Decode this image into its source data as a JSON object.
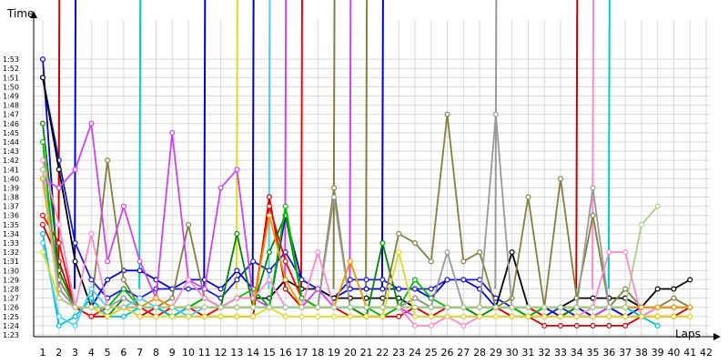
{
  "chart_data": {
    "type": "line",
    "title": "",
    "xlabel": "Laps",
    "ylabel": "Time",
    "x": [
      1,
      2,
      3,
      4,
      5,
      6,
      7,
      8,
      9,
      10,
      11,
      12,
      13,
      14,
      15,
      16,
      17,
      18,
      19,
      20,
      21,
      22,
      23,
      24,
      25,
      26,
      27,
      28,
      29,
      30,
      31,
      32,
      33,
      34,
      35,
      36,
      37,
      38,
      39,
      40,
      41,
      42
    ],
    "y_ticks": [
      "1:23",
      "1:24",
      "1:25",
      "1:26",
      "1:27",
      "1:28",
      "1:29",
      "1:30",
      "1:31",
      "1:32",
      "1:33",
      "1:34",
      "1:35",
      "1:36",
      "1:37",
      "1:38",
      "1:39",
      "1:40",
      "1:41",
      "1:42",
      "1:43",
      "1:44",
      "1:45",
      "1:46",
      "1:47",
      "1:48",
      "1:49",
      "1:50",
      "1:51",
      "1:52",
      "1:53"
    ],
    "ylim": [
      83,
      114
    ],
    "xlim": [
      1,
      42
    ],
    "grid": true,
    "legend": "none",
    "series": [
      {
        "color": "#0000cc",
        "values": [
          113,
          88,
          86,
          86,
          89,
          90,
          90,
          89,
          88,
          89,
          89,
          88,
          90,
          88,
          86,
          96,
          89,
          88,
          87,
          88,
          88,
          88,
          88,
          88,
          87,
          89,
          89,
          88,
          86,
          86,
          85,
          86,
          85,
          86,
          85,
          86,
          85,
          86,
          86,
          86,
          86,
          null
        ]
      },
      {
        "color": "#1a1ad4",
        "values": [
          111,
          102,
          93,
          89,
          87,
          88,
          87,
          88,
          88,
          88,
          88,
          87,
          89,
          91,
          90,
          92,
          89,
          88,
          87,
          89,
          89,
          89,
          88,
          88,
          88,
          89,
          89,
          89,
          87,
          86,
          86,
          85,
          86,
          85,
          85,
          86,
          85,
          85,
          86,
          86,
          86,
          null
        ]
      },
      {
        "color": "#000000",
        "values": [
          111,
          101,
          91,
          86,
          86,
          86,
          86,
          86,
          86,
          86,
          87,
          86,
          87,
          87,
          87,
          89,
          88,
          88,
          87,
          87,
          87,
          87,
          87,
          86,
          86,
          86,
          86,
          86,
          86,
          92,
          86,
          86,
          86,
          87,
          87,
          87,
          87,
          86,
          88,
          88,
          89,
          null
        ]
      },
      {
        "color": "#cc0000",
        "values": [
          95,
          91,
          86,
          85,
          85,
          86,
          85,
          86,
          85,
          85,
          85,
          85,
          85,
          85,
          98,
          88,
          86,
          86,
          86,
          85,
          85,
          85,
          85,
          86,
          85,
          86,
          86,
          86,
          86,
          85,
          85,
          84,
          84,
          84,
          84,
          84,
          84,
          85,
          85,
          85,
          86,
          null
        ]
      },
      {
        "color": "#ff0000",
        "values": [
          96,
          93,
          86,
          85,
          86,
          86,
          86,
          85,
          86,
          86,
          85,
          86,
          86,
          86,
          97,
          91,
          87,
          86,
          86,
          86,
          85,
          85,
          86,
          87,
          86,
          86,
          86,
          86,
          86,
          86,
          86,
          85,
          85,
          85,
          85,
          85,
          85,
          85,
          85,
          85,
          85,
          null
        ]
      },
      {
        "color": "#008800",
        "values": [
          106,
          90,
          86,
          86,
          85,
          87,
          86,
          86,
          85,
          86,
          86,
          86,
          94,
          86,
          92,
          96,
          87,
          86,
          86,
          86,
          85,
          93,
          86,
          87,
          86,
          86,
          86,
          85,
          86,
          86,
          85,
          85,
          85,
          86,
          86,
          86,
          86,
          86,
          86,
          86,
          86,
          null
        ]
      },
      {
        "color": "#00bb00",
        "values": [
          104,
          87,
          86,
          86,
          86,
          88,
          86,
          87,
          86,
          86,
          87,
          86,
          87,
          88,
          86,
          97,
          87,
          86,
          86,
          91,
          86,
          85,
          86,
          89,
          87,
          86,
          86,
          86,
          86,
          86,
          85,
          86,
          86,
          86,
          86,
          86,
          86,
          86,
          86,
          86,
          86,
          null
        ]
      },
      {
        "color": "#808040",
        "values": [
          101,
          89,
          86,
          86,
          102,
          89,
          86,
          86,
          87,
          95,
          87,
          86,
          86,
          86,
          86,
          86,
          86,
          86,
          99,
          86,
          86,
          86,
          94,
          93,
          91,
          107,
          91,
          92,
          86,
          87,
          98,
          86,
          100,
          87,
          96,
          86,
          88,
          86,
          86,
          87,
          86,
          null
        ]
      },
      {
        "color": "#999999",
        "values": [
          100,
          88,
          86,
          86,
          86,
          87,
          86,
          86,
          86,
          86,
          86,
          86,
          86,
          86,
          86,
          86,
          86,
          86,
          98,
          86,
          86,
          86,
          86,
          87,
          86,
          92,
          86,
          86,
          107,
          86,
          86,
          86,
          86,
          86,
          99,
          86,
          86,
          86,
          86,
          86,
          86,
          null
        ]
      },
      {
        "color": "#cc44ee",
        "values": [
          100,
          99,
          101,
          106,
          91,
          97,
          91,
          87,
          105,
          89,
          88,
          99,
          101,
          87,
          86,
          86,
          86,
          88,
          86,
          86,
          86,
          86,
          86,
          85,
          85,
          85,
          85,
          85,
          85,
          85,
          85,
          85,
          85,
          85,
          85,
          86,
          86,
          86,
          86,
          86,
          86,
          null
        ]
      },
      {
        "color": "#ff88cc",
        "values": [
          102,
          95,
          86,
          94,
          86,
          86,
          86,
          87,
          86,
          89,
          87,
          86,
          87,
          87,
          89,
          86,
          86,
          92,
          86,
          86,
          86,
          86,
          86,
          84,
          84,
          85,
          84,
          85,
          85,
          85,
          85,
          85,
          85,
          85,
          86,
          92,
          92,
          85,
          86,
          86,
          86,
          null
        ]
      },
      {
        "color": "#00bbcc",
        "values": [
          94,
          84,
          85,
          87,
          85,
          85,
          86,
          86,
          85,
          86,
          86,
          86,
          86,
          86,
          86,
          86,
          86,
          86,
          86,
          86,
          86,
          86,
          86,
          86,
          86,
          86,
          86,
          86,
          86,
          86,
          86,
          86,
          86,
          86,
          86,
          86,
          86,
          85,
          84,
          null,
          null,
          null
        ]
      },
      {
        "color": "#44ccff",
        "values": [
          93,
          85,
          84,
          88,
          86,
          86,
          87,
          86,
          86,
          85,
          86,
          86,
          86,
          86,
          86,
          86,
          86,
          86,
          86,
          86,
          86,
          86,
          86,
          86,
          86,
          86,
          86,
          86,
          86,
          86,
          86,
          86,
          86,
          86,
          86,
          86,
          86,
          86,
          86,
          86,
          86,
          null
        ]
      },
      {
        "color": "#dddd22",
        "values": [
          92,
          87,
          86,
          86,
          85,
          86,
          85,
          85,
          85,
          85,
          85,
          85,
          85,
          85,
          86,
          85,
          85,
          85,
          85,
          85,
          85,
          85,
          92,
          85,
          85,
          85,
          85,
          85,
          85,
          85,
          85,
          85,
          85,
          85,
          85,
          85,
          85,
          85,
          85,
          85,
          85,
          null
        ]
      },
      {
        "color": "#ff9900",
        "values": [
          100,
          87,
          86,
          86,
          86,
          86,
          86,
          87,
          86,
          86,
          86,
          86,
          86,
          86,
          96,
          89,
          86,
          86,
          86,
          91,
          86,
          86,
          86,
          86,
          86,
          86,
          86,
          86,
          86,
          86,
          86,
          86,
          86,
          86,
          86,
          86,
          86,
          86,
          86,
          86,
          86,
          null
        ]
      },
      {
        "color": "#aacc88",
        "values": [
          101,
          87,
          86,
          86,
          86,
          86,
          86,
          86,
          86,
          86,
          86,
          86,
          86,
          86,
          86,
          86,
          86,
          86,
          86,
          86,
          86,
          86,
          86,
          86,
          86,
          86,
          86,
          86,
          86,
          86,
          86,
          86,
          86,
          86,
          86,
          86,
          86,
          95,
          97,
          null,
          null,
          null
        ]
      }
    ],
    "spikes": [
      {
        "color": "#cc0000",
        "x": 2
      },
      {
        "color": "#0000cc",
        "x": 3
      },
      {
        "color": "#00cccc",
        "x": 7
      },
      {
        "color": "#0000cc",
        "x": 11
      },
      {
        "color": "#dddd22",
        "x": 13
      },
      {
        "color": "#0000cc",
        "x": 14
      },
      {
        "color": "#44ccff",
        "x": 15
      },
      {
        "color": "#cc44ee",
        "x": 16
      },
      {
        "color": "#ff0000",
        "x": 17
      },
      {
        "color": "#808040",
        "x": 19
      },
      {
        "color": "#cc44ee",
        "x": 20
      },
      {
        "color": "#808040",
        "x": 21
      },
      {
        "color": "#0000cc",
        "x": 22
      },
      {
        "color": "#999999",
        "x": 29
      },
      {
        "color": "#cc0000",
        "x": 34
      },
      {
        "color": "#ff88cc",
        "x": 35
      },
      {
        "color": "#00cccc",
        "x": 36
      }
    ]
  }
}
